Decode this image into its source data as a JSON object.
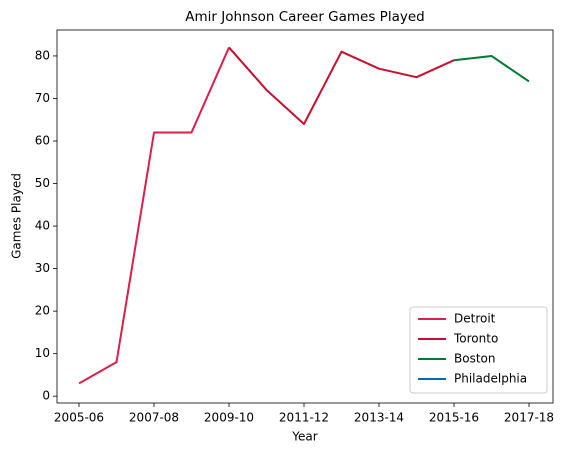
{
  "chart_data": {
    "type": "line",
    "title": "Amir Johnson Career Games Played",
    "xlabel": "Year",
    "ylabel": "Games Played",
    "categories": [
      "2005-06",
      null,
      "2007-08",
      null,
      "2009-10",
      null,
      "2011-12",
      null,
      "2013-14",
      null,
      "2015-16",
      null,
      "2017-18"
    ],
    "series": [
      {
        "name": "Detroit",
        "color": "#dc1e4a",
        "values": [
          3,
          8,
          62,
          62,
          82,
          null,
          null,
          null,
          null,
          null,
          null,
          null,
          null
        ]
      },
      {
        "name": "Toronto",
        "color": "#c8102e",
        "values": [
          null,
          null,
          null,
          null,
          82,
          72,
          64,
          81,
          77,
          75,
          79,
          null,
          null
        ]
      },
      {
        "name": "Boston",
        "color": "#007a33",
        "values": [
          null,
          null,
          null,
          null,
          null,
          null,
          null,
          null,
          null,
          null,
          79,
          80,
          74
        ]
      },
      {
        "name": "Philadelphia",
        "color": "#006bb6",
        "values": [
          null,
          null,
          null,
          null,
          null,
          null,
          null,
          null,
          null,
          null,
          null,
          null,
          74
        ]
      }
    ],
    "ylim": [
      -1.6,
      86.1
    ],
    "yticks": [
      0,
      10,
      20,
      30,
      40,
      50,
      60,
      70,
      80
    ],
    "legend": "lower right"
  }
}
